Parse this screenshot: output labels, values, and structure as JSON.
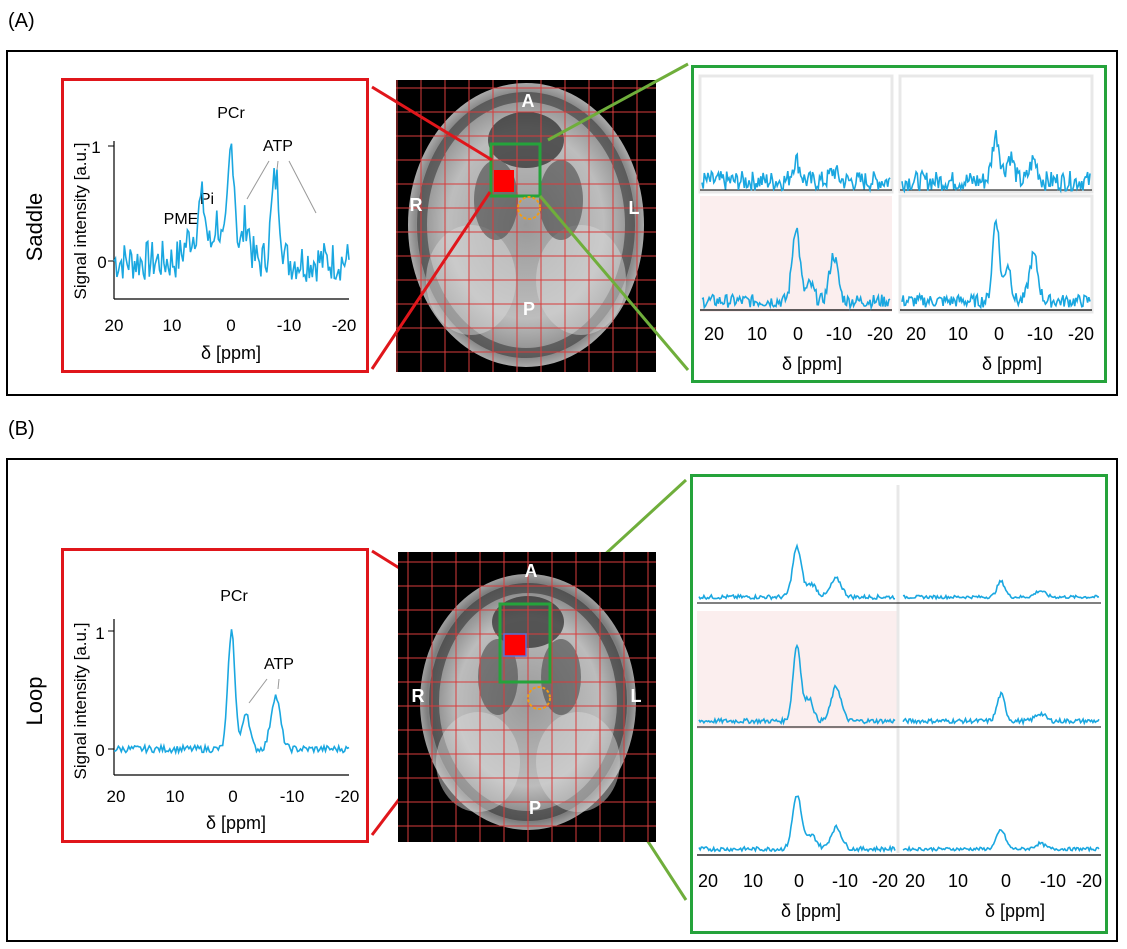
{
  "panels": [
    {
      "label": "(A)",
      "row_label": "Saddle",
      "image_labels": {
        "anterior": "A",
        "posterior": "P",
        "right": "R",
        "left": "L"
      },
      "main_spectrum": {
        "peaks": {
          "pcr": "PCr",
          "pi": "Pi",
          "pme": "PME",
          "atp": "ATP"
        },
        "ylabel": "Signal intensity [a.u.]",
        "xlabel": "δ [ppm]",
        "yticks": [
          "1",
          "0"
        ],
        "xticks": [
          "20",
          "10",
          "0",
          "-10",
          "-20"
        ]
      },
      "grid_spectra": {
        "xlabel": "δ [ppm]",
        "xticks": [
          "20",
          "10",
          "0",
          "-10",
          "-20"
        ]
      }
    },
    {
      "label": "(B)",
      "row_label": "Loop",
      "image_labels": {
        "anterior": "A",
        "posterior": "P",
        "right": "R",
        "left": "L"
      },
      "main_spectrum": {
        "peaks": {
          "pcr": "PCr",
          "atp": "ATP"
        },
        "ylabel": "Signal intensity [a.u.]",
        "xlabel": "δ [ppm]",
        "yticks": [
          "1",
          "0"
        ],
        "xticks": [
          "20",
          "10",
          "0",
          "-10",
          "-20"
        ]
      },
      "grid_spectra": {
        "xlabel": "δ [ppm]",
        "xticks": [
          "20",
          "10",
          "0",
          "-10",
          "-20"
        ]
      }
    }
  ],
  "colors": {
    "spectrum": "#1aa7e0",
    "red_box": "#e0161b",
    "green_box": "#25a33b",
    "connector_green": "#6fae3b",
    "grid": "#d83c3c",
    "highlight_bg": "#fbeeee",
    "orange_circle": "#f39c12"
  }
}
